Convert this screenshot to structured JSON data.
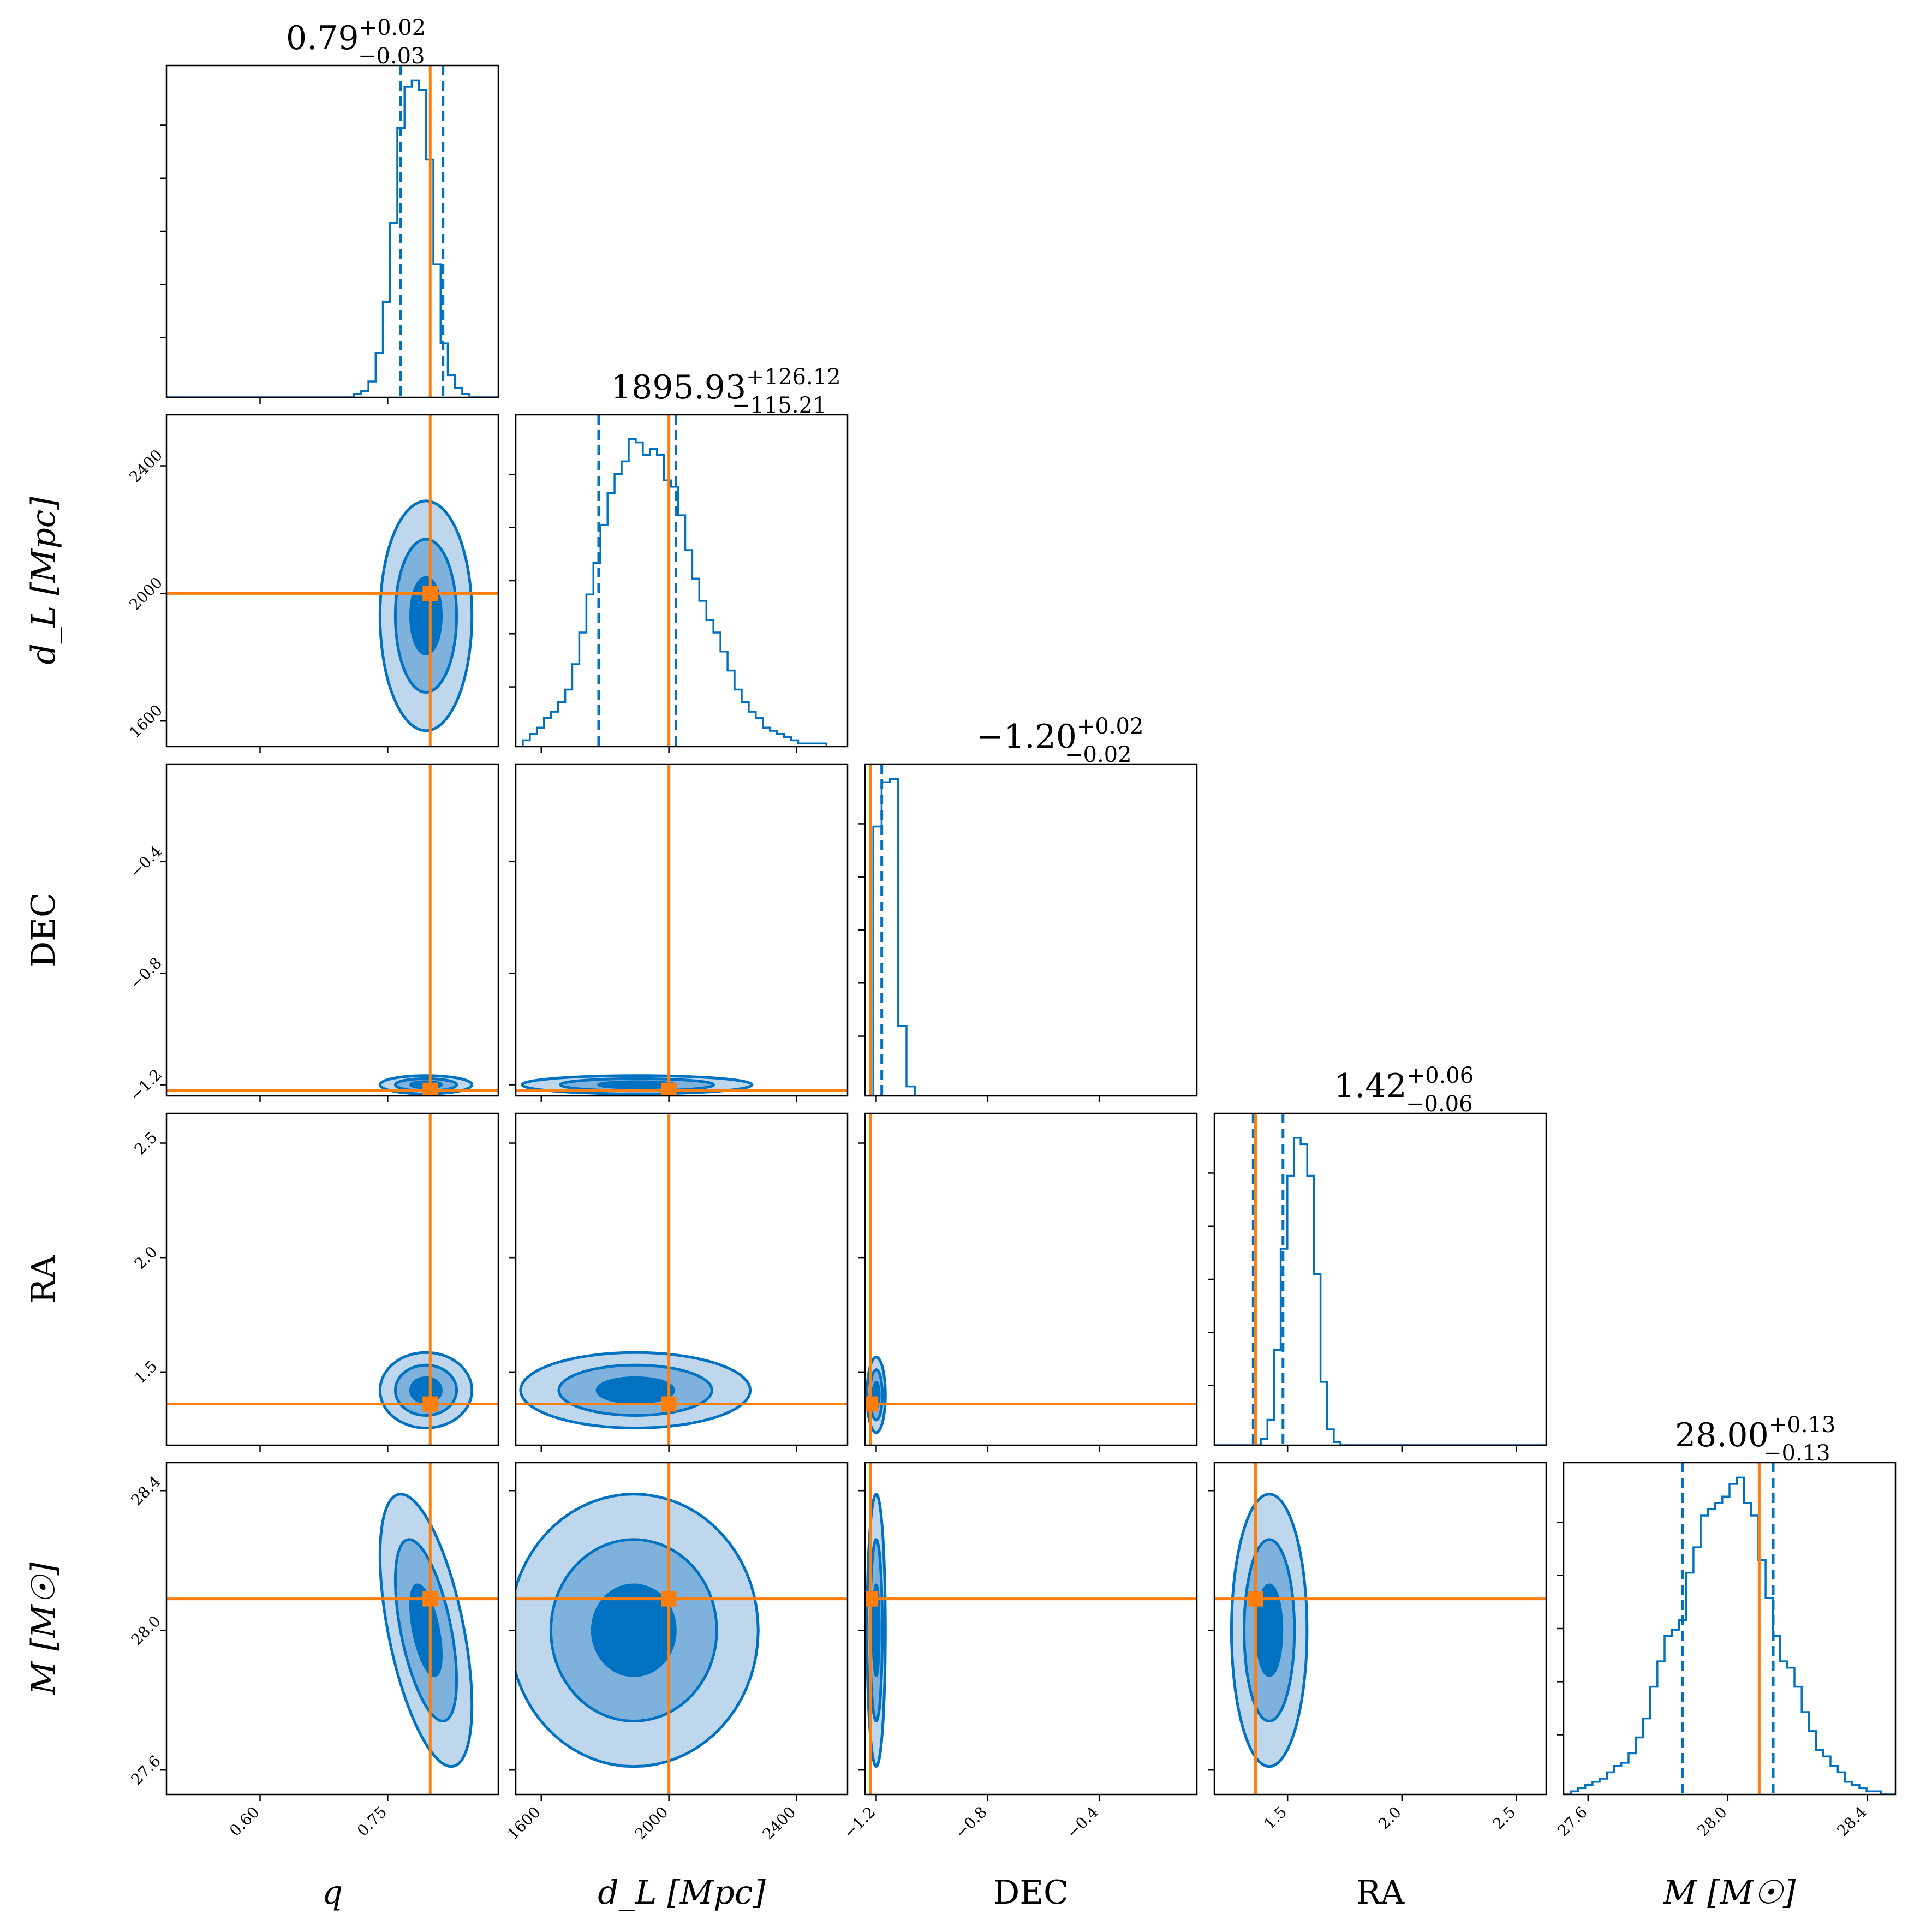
{
  "colors": {
    "posterior": "#0072c1",
    "fill_1sigma": "#0072c1",
    "fill_2sigma": "#7fb1dd",
    "fill_3sigma": "#bfd7ec",
    "truth": "#ff7f0e"
  },
  "chart_data": {
    "type": "corner",
    "parameters": [
      {
        "key": "q",
        "label": "q",
        "range": [
          0.49,
          0.88
        ],
        "ticks": [
          0.6,
          0.75
        ],
        "tick_labels": [
          "0.60",
          "0.75"
        ],
        "truth": 0.8,
        "title": {
          "median": "0.79",
          "plus": "+0.02",
          "minus": "−0.03"
        },
        "quantiles": [
          0.765,
          0.815
        ]
      },
      {
        "key": "dL",
        "label": "d_L [Mpc]",
        "range": [
          1520,
          2560
        ],
        "ticks": [
          1600,
          2000,
          2400
        ],
        "tick_labels": [
          "1600",
          "2000",
          "2400"
        ],
        "truth": 2000,
        "title": {
          "median": "1895.93",
          "plus": "+126.12",
          "minus": "−115.21"
        },
        "quantiles": [
          1780,
          2022
        ]
      },
      {
        "key": "DEC",
        "label": "DEC",
        "range": [
          -1.24,
          -0.05
        ],
        "ticks": [
          -1.2,
          -0.8,
          -0.4
        ],
        "tick_labels": [
          "−1.2",
          "−0.8",
          "−0.4"
        ],
        "truth": -1.22,
        "title": {
          "median": "−1.20",
          "plus": "+0.02",
          "minus": "−0.02"
        },
        "quantiles": [
          -1.22,
          -1.18
        ]
      },
      {
        "key": "RA",
        "label": "RA",
        "range": [
          1.18,
          2.63
        ],
        "ticks": [
          1.5,
          2.0,
          2.5
        ],
        "tick_labels": [
          "1.5",
          "2.0",
          "2.5"
        ],
        "truth": 1.36,
        "title": {
          "median": "1.42",
          "plus": "+0.06",
          "minus": "−0.06"
        },
        "quantiles": [
          1.35,
          1.48
        ]
      },
      {
        "key": "M",
        "label": "M [M☉]",
        "range": [
          27.53,
          28.48
        ],
        "ticks": [
          27.6,
          28.0,
          28.4
        ],
        "tick_labels": [
          "27.6",
          "28.0",
          "28.4"
        ],
        "truth": 28.09,
        "title": {
          "median": "28.00",
          "plus": "+0.13",
          "minus": "−0.13"
        },
        "quantiles": [
          27.87,
          28.13
        ]
      }
    ],
    "marginal_histograms": [
      {
        "param": "q",
        "bin_edges_range": [
          0.49,
          0.88
        ],
        "counts": [
          0,
          0,
          0,
          0,
          0,
          0,
          0,
          0,
          0,
          0,
          0,
          0,
          0,
          0,
          0,
          0,
          0,
          0,
          0,
          0,
          0,
          0,
          0,
          0,
          0,
          0,
          0.01,
          0.02,
          0.05,
          0.14,
          0.3,
          0.55,
          0.85,
          0.98,
          1.0,
          0.97,
          0.75,
          0.42,
          0.17,
          0.07,
          0.03,
          0.01,
          0,
          0,
          0,
          0
        ]
      },
      {
        "param": "dL",
        "bin_edges_range": [
          1520,
          2560
        ],
        "counts": [
          0,
          0.02,
          0.04,
          0.06,
          0.09,
          0.11,
          0.14,
          0.18,
          0.26,
          0.36,
          0.48,
          0.58,
          0.7,
          0.8,
          0.86,
          0.9,
          0.97,
          0.96,
          0.92,
          0.94,
          0.92,
          0.84,
          0.82,
          0.73,
          0.62,
          0.53,
          0.46,
          0.4,
          0.36,
          0.3,
          0.24,
          0.18,
          0.14,
          0.11,
          0.09,
          0.06,
          0.05,
          0.04,
          0.03,
          0.02,
          0.01,
          0.01,
          0.01,
          0.01,
          0,
          0,
          0
        ]
      },
      {
        "param": "DEC",
        "bin_edges_range": [
          -1.24,
          -0.05
        ],
        "counts": [
          0,
          0.85,
          0.99,
          1.0,
          0.22,
          0.03,
          0,
          0,
          0,
          0,
          0,
          0,
          0,
          0,
          0,
          0,
          0,
          0,
          0,
          0,
          0,
          0,
          0,
          0,
          0,
          0,
          0,
          0,
          0,
          0,
          0,
          0,
          0,
          0,
          0,
          0,
          0,
          0,
          0,
          0
        ]
      },
      {
        "param": "RA",
        "bin_edges_range": [
          1.18,
          2.63
        ],
        "counts": [
          0,
          0,
          0,
          0,
          0,
          0,
          0,
          0.02,
          0.08,
          0.3,
          0.62,
          0.85,
          0.97,
          0.95,
          0.85,
          0.54,
          0.2,
          0.05,
          0.01,
          0,
          0,
          0,
          0,
          0,
          0,
          0,
          0,
          0,
          0,
          0,
          0,
          0,
          0,
          0,
          0,
          0,
          0,
          0,
          0,
          0,
          0,
          0,
          0,
          0,
          0,
          0,
          0,
          0,
          0,
          0
        ]
      },
      {
        "param": "M",
        "bin_edges_range": [
          27.53,
          28.48
        ],
        "counts": [
          0,
          0.01,
          0.02,
          0.03,
          0.04,
          0.05,
          0.07,
          0.09,
          0.1,
          0.13,
          0.18,
          0.24,
          0.34,
          0.42,
          0.5,
          0.52,
          0.55,
          0.7,
          0.78,
          0.88,
          0.9,
          0.92,
          0.94,
          0.98,
          1.0,
          0.92,
          0.88,
          0.74,
          0.62,
          0.5,
          0.42,
          0.4,
          0.34,
          0.26,
          0.2,
          0.14,
          0.12,
          0.09,
          0.07,
          0.04,
          0.03,
          0.02,
          0.01,
          0.01,
          0,
          0
        ]
      }
    ],
    "joint_contours": [
      {
        "x": "q",
        "y": "dL",
        "center": [
          0.795,
          1930
        ],
        "sigma": [
          0.018,
          120
        ],
        "rho": 0.0
      },
      {
        "x": "q",
        "y": "DEC",
        "center": [
          0.795,
          -1.2
        ],
        "sigma": [
          0.018,
          0.011
        ],
        "rho": 0.0
      },
      {
        "x": "dL",
        "y": "DEC",
        "center": [
          1900,
          -1.2
        ],
        "sigma": [
          120,
          0.011
        ],
        "rho": 0.0
      },
      {
        "x": "q",
        "y": "RA",
        "center": [
          0.795,
          1.42
        ],
        "sigma": [
          0.018,
          0.055
        ],
        "rho": 0.0
      },
      {
        "x": "dL",
        "y": "RA",
        "center": [
          1895,
          1.42
        ],
        "sigma": [
          120,
          0.055
        ],
        "rho": 0.0
      },
      {
        "x": "DEC",
        "y": "RA",
        "center": [
          -1.2,
          1.4
        ],
        "sigma": [
          0.011,
          0.055
        ],
        "rho": 0.0
      },
      {
        "x": "q",
        "y": "M",
        "center": [
          0.795,
          28.0
        ],
        "sigma": [
          0.018,
          0.13
        ],
        "rho": -0.55
      },
      {
        "x": "dL",
        "y": "M",
        "center": [
          1890,
          28.0
        ],
        "sigma": [
          130,
          0.13
        ],
        "rho": 0.0
      },
      {
        "x": "DEC",
        "y": "M",
        "center": [
          -1.2,
          28.0
        ],
        "sigma": [
          0.011,
          0.13
        ],
        "rho": 0.0
      },
      {
        "x": "RA",
        "y": "M",
        "center": [
          1.42,
          28.0
        ],
        "sigma": [
          0.055,
          0.13
        ],
        "rho": 0.0
      }
    ],
    "contour_levels_sigma": [
      1,
      2,
      3
    ],
    "grid": false,
    "legend": "none"
  }
}
